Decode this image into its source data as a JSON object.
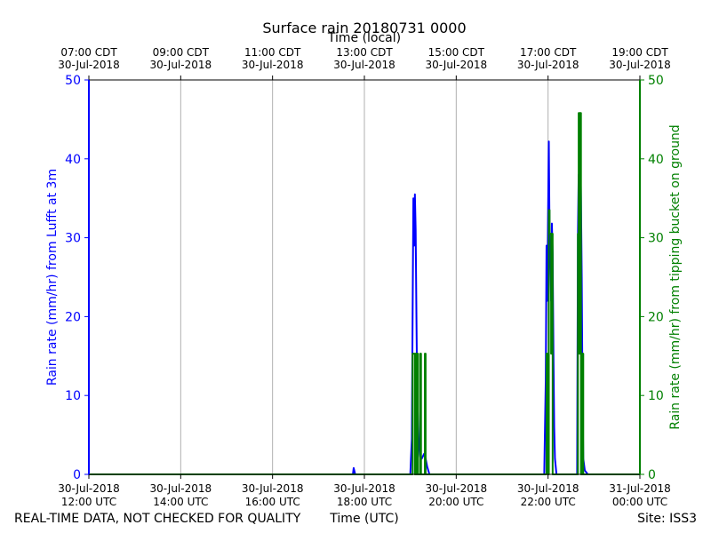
{
  "chart_data": {
    "type": "line",
    "title": "Surface rain 20180731 0000",
    "top_xlabel": "Time (local)",
    "xlabel": "Time (UTC)",
    "footer_left": "REAL-TIME DATA, NOT CHECKED FOR QUALITY",
    "footer_right": "Site: ISS3",
    "ylabel_left": "Rain rate (mm/hr) from Lufft at 3m",
    "ylabel_right": "Rain rate (mm/hr) from tipping bucket on ground",
    "xlim": [
      "2018-07-30 12:00",
      "2018-07-31 00:00"
    ],
    "ylim_left": [
      0,
      50
    ],
    "ylim_right": [
      0,
      50
    ],
    "yticks": [
      0,
      10,
      20,
      30,
      40,
      50
    ],
    "grid": "vertical",
    "bottom_ticks": [
      {
        "t": "2018-07-30 12:00",
        "line1": "30-Jul-2018",
        "line2": "12:00 UTC"
      },
      {
        "t": "2018-07-30 14:00",
        "line1": "30-Jul-2018",
        "line2": "14:00 UTC"
      },
      {
        "t": "2018-07-30 16:00",
        "line1": "30-Jul-2018",
        "line2": "16:00 UTC"
      },
      {
        "t": "2018-07-30 18:00",
        "line1": "30-Jul-2018",
        "line2": "18:00 UTC"
      },
      {
        "t": "2018-07-30 20:00",
        "line1": "30-Jul-2018",
        "line2": "20:00 UTC"
      },
      {
        "t": "2018-07-30 22:00",
        "line1": "30-Jul-2018",
        "line2": "22:00 UTC"
      },
      {
        "t": "2018-07-31 00:00",
        "line1": "31-Jul-2018",
        "line2": "00:00 UTC"
      }
    ],
    "top_ticks": [
      {
        "t": "2018-07-30 12:00",
        "line1": "07:00 CDT",
        "line2": "30-Jul-2018"
      },
      {
        "t": "2018-07-30 14:00",
        "line1": "09:00 CDT",
        "line2": "30-Jul-2018"
      },
      {
        "t": "2018-07-30 16:00",
        "line1": "11:00 CDT",
        "line2": "30-Jul-2018"
      },
      {
        "t": "2018-07-30 18:00",
        "line1": "13:00 CDT",
        "line2": "30-Jul-2018"
      },
      {
        "t": "2018-07-30 20:00",
        "line1": "15:00 CDT",
        "line2": "30-Jul-2018"
      },
      {
        "t": "2018-07-30 22:00",
        "line1": "17:00 CDT",
        "line2": "30-Jul-2018"
      },
      {
        "t": "2018-07-31 00:00",
        "line1": "19:00 CDT",
        "line2": "30-Jul-2018"
      }
    ],
    "series": [
      {
        "color": "#0000ff",
        "axis": "left",
        "points": [
          [
            "2018-07-30 12:00",
            50
          ],
          [
            "2018-07-30 12:00",
            0
          ],
          [
            "2018-07-30 17:45",
            0
          ],
          [
            "2018-07-30 17:46",
            0.8
          ],
          [
            "2018-07-30 17:48",
            0
          ],
          [
            "2018-07-30 19:00",
            0
          ],
          [
            "2018-07-30 19:02",
            4.5
          ],
          [
            "2018-07-30 19:04",
            35
          ],
          [
            "2018-07-30 19:05",
            29
          ],
          [
            "2018-07-30 19:06",
            35.5
          ],
          [
            "2018-07-30 19:07",
            31
          ],
          [
            "2018-07-30 19:08",
            20
          ],
          [
            "2018-07-30 19:09",
            10
          ],
          [
            "2018-07-30 19:11",
            4
          ],
          [
            "2018-07-30 19:13",
            2.2
          ],
          [
            "2018-07-30 19:15",
            2
          ],
          [
            "2018-07-30 19:18",
            2.6
          ],
          [
            "2018-07-30 19:20",
            2
          ],
          [
            "2018-07-30 19:22",
            1
          ],
          [
            "2018-07-30 19:25",
            0
          ],
          [
            "2018-07-30 21:55",
            0
          ],
          [
            "2018-07-30 21:57",
            12
          ],
          [
            "2018-07-30 21:58",
            29
          ],
          [
            "2018-07-30 21:59",
            22
          ],
          [
            "2018-07-30 22:00",
            33
          ],
          [
            "2018-07-30 22:01",
            42.2
          ],
          [
            "2018-07-30 22:02",
            30
          ],
          [
            "2018-07-30 22:03",
            28
          ],
          [
            "2018-07-30 22:04",
            22
          ],
          [
            "2018-07-30 22:05",
            31.8
          ],
          [
            "2018-07-30 22:06",
            28
          ],
          [
            "2018-07-30 22:07",
            15.5
          ],
          [
            "2018-07-30 22:08",
            6
          ],
          [
            "2018-07-30 22:09",
            2
          ],
          [
            "2018-07-30 22:11",
            0
          ],
          [
            "2018-07-30 22:38",
            0
          ],
          [
            "2018-07-30 22:39",
            30
          ],
          [
            "2018-07-30 22:40",
            38
          ],
          [
            "2018-07-30 22:41",
            33
          ],
          [
            "2018-07-30 22:42",
            42.5
          ],
          [
            "2018-07-30 22:43",
            35
          ],
          [
            "2018-07-30 22:44",
            25
          ],
          [
            "2018-07-30 22:45",
            10
          ],
          [
            "2018-07-30 22:46",
            2
          ],
          [
            "2018-07-30 22:48",
            0.5
          ],
          [
            "2018-07-30 22:52",
            0
          ],
          [
            "2018-07-31 00:00",
            0
          ]
        ]
      },
      {
        "color": "#008000",
        "axis": "right",
        "points": [
          [
            "2018-07-30 12:00",
            0
          ],
          [
            "2018-07-30 19:03",
            0
          ],
          [
            "2018-07-30 19:03",
            15.3
          ],
          [
            "2018-07-30 19:06",
            15.3
          ],
          [
            "2018-07-30 19:06",
            0
          ],
          [
            "2018-07-30 19:07",
            0
          ],
          [
            "2018-07-30 19:07",
            15.3
          ],
          [
            "2018-07-30 19:08",
            15.3
          ],
          [
            "2018-07-30 19:08",
            0
          ],
          [
            "2018-07-30 19:09",
            0
          ],
          [
            "2018-07-30 19:09",
            15.3
          ],
          [
            "2018-07-30 19:10",
            15.3
          ],
          [
            "2018-07-30 19:10",
            0
          ],
          [
            "2018-07-30 19:13",
            0
          ],
          [
            "2018-07-30 19:13",
            15.3
          ],
          [
            "2018-07-30 19:14",
            15.3
          ],
          [
            "2018-07-30 19:14",
            0
          ],
          [
            "2018-07-30 19:19",
            0
          ],
          [
            "2018-07-30 19:19",
            15.3
          ],
          [
            "2018-07-30 19:20",
            15.3
          ],
          [
            "2018-07-30 19:20",
            0
          ],
          [
            "2018-07-30 21:58",
            0
          ],
          [
            "2018-07-30 21:58",
            15.3
          ],
          [
            "2018-07-30 22:00",
            15.3
          ],
          [
            "2018-07-30 22:00",
            0
          ],
          [
            "2018-07-30 22:01",
            0
          ],
          [
            "2018-07-30 22:01",
            33.5
          ],
          [
            "2018-07-30 22:02",
            33.5
          ],
          [
            "2018-07-30 22:02",
            30.5
          ],
          [
            "2018-07-30 22:04",
            30.5
          ],
          [
            "2018-07-30 22:04",
            15.3
          ],
          [
            "2018-07-30 22:05",
            15.3
          ],
          [
            "2018-07-30 22:05",
            30.5
          ],
          [
            "2018-07-30 22:06",
            30.5
          ],
          [
            "2018-07-30 22:06",
            0
          ],
          [
            "2018-07-30 22:39",
            0
          ],
          [
            "2018-07-30 22:39",
            30.5
          ],
          [
            "2018-07-30 22:40",
            30.5
          ],
          [
            "2018-07-30 22:40",
            45.8
          ],
          [
            "2018-07-30 22:41",
            45.8
          ],
          [
            "2018-07-30 22:41",
            15.3
          ],
          [
            "2018-07-30 22:42",
            15.3
          ],
          [
            "2018-07-30 22:42",
            45.8
          ],
          [
            "2018-07-30 22:43",
            45.8
          ],
          [
            "2018-07-30 22:43",
            0
          ],
          [
            "2018-07-30 22:45",
            0
          ],
          [
            "2018-07-30 22:45",
            15.3
          ],
          [
            "2018-07-30 22:46",
            15.3
          ],
          [
            "2018-07-30 22:46",
            0
          ],
          [
            "2018-07-31 00:00",
            0
          ]
        ]
      }
    ]
  }
}
